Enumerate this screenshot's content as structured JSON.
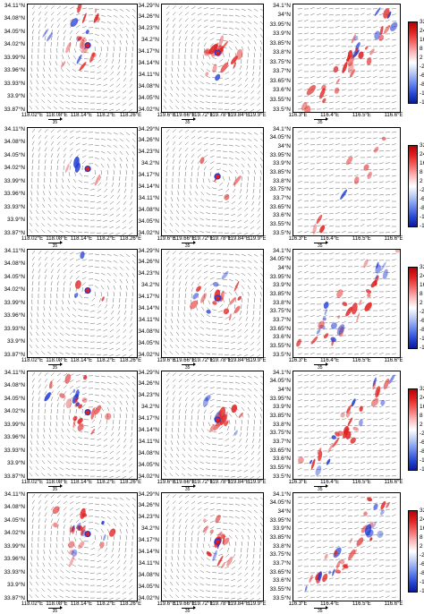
{
  "colors": {
    "positive": "#e02020",
    "negative": "#1f3bd6",
    "vector": "#444444",
    "frame": "#000000"
  },
  "colorbar_labels": [
    "32",
    "24",
    "16",
    "8",
    "2",
    "-2",
    "-6",
    "-8",
    "-10",
    "-12"
  ],
  "colorbar_rows": [
    [
      "32",
      "24",
      "16",
      "8",
      "2",
      "-2",
      "-6",
      "-8",
      "-10",
      "-12"
    ],
    [
      "32",
      "24",
      "16",
      "8",
      "2",
      "-2",
      "-6",
      "-8",
      "-10",
      "-12"
    ],
    [
      "32",
      "24",
      "16",
      "8",
      "2",
      "-2",
      "-6",
      "-8",
      "-10",
      "-12"
    ],
    [
      "32",
      "24",
      "16",
      "8",
      "2",
      "-2",
      "-6",
      "-8",
      "-10",
      "-12"
    ],
    [
      "32",
      "24",
      "16",
      "8",
      "2",
      "-2",
      "-6",
      "-8",
      "-10",
      "-12"
    ]
  ],
  "reference_vector_label": "35",
  "columns": [
    {
      "lat_labels": [
        "34.11°N",
        "34.08°N",
        "34.05°N",
        "34.02°N",
        "33.99°N",
        "33.96°N",
        "33.93°N",
        "33.9°N",
        "33.87°N"
      ],
      "lon_labels": [
        "118.02°E",
        "118.08°E",
        "118.14°E",
        "118.2°E",
        "118.26°E"
      ]
    },
    {
      "lat_labels": [
        "34.29°N",
        "34.26°N",
        "34.23°N",
        "34.2°N",
        "34.17°N",
        "34.14°N",
        "34.11°N",
        "34.08°N",
        "34.05°N",
        "34.02°N"
      ],
      "lon_labels": [
        "119.6°E",
        "119.66°E",
        "119.72°E",
        "119.78°E",
        "119.84°E",
        "119.9°E"
      ]
    },
    {
      "lat_labels": [
        "34.1°N",
        "34°N",
        "33.95°N",
        "33.9°N",
        "33.85°N",
        "33.8°N",
        "33.75°N",
        "33.7°N",
        "33.65°N",
        "33.6°N",
        "33.55°N",
        "33.5°N"
      ],
      "lon_labels": [
        "116.3°E",
        "116.4°E",
        "116.5°E",
        "116.6°E"
      ]
    }
  ],
  "rows": [
    {
      "row_id": "row-1",
      "col3_lat_labels": [
        "34.1°N",
        "34°N",
        "33.95°N",
        "33.9°N",
        "33.85°N",
        "33.8°N",
        "33.75°N",
        "33.7°N",
        "33.65°N",
        "33.6°N",
        "33.55°N",
        "33.5°N"
      ],
      "col3_lon_labels": [
        "116.3°E",
        "116.4°E",
        "116.5°E",
        "116.6°E"
      ]
    },
    {
      "row_id": "row-2",
      "col3_lat_labels": [
        "34.1°N",
        "34.05°N",
        "34°N",
        "33.95°N",
        "33.9°N",
        "33.85°N",
        "33.8°N",
        "33.75°N",
        "33.7°N",
        "33.65°N",
        "33.6°N",
        "33.55°N",
        "33.5°N"
      ],
      "col3_lon_labels": [
        "116.3°E",
        "116.4°E",
        "116.5°E",
        "116.6°E"
      ]
    },
    {
      "row_id": "row-3",
      "col3_lat_labels": [
        "34.1°N",
        "34.05°N",
        "34°N",
        "33.95°N",
        "33.9°N",
        "33.85°N",
        "33.8°N",
        "33.75°N",
        "33.7°N",
        "33.65°N",
        "33.6°N",
        "33.55°N",
        "33.5°N"
      ],
      "col3_lon_labels": [
        "116.3°E",
        "116.4°E",
        "116.5°E",
        "116.6°E"
      ]
    },
    {
      "row_id": "row-4",
      "col3_lat_labels": [
        "34.1°N",
        "34.05°N",
        "34°N",
        "33.95°N",
        "33.9°N",
        "33.85°N",
        "33.8°N",
        "33.75°N",
        "33.7°N",
        "33.65°N",
        "33.6°N",
        "33.55°N",
        "33.5°N"
      ],
      "col3_lon_labels": [
        "116.3°E",
        "116.4°E",
        "116.5°E",
        "116.6°E"
      ]
    },
    {
      "row_id": "row-5",
      "col3_lat_labels": [
        "34.1°N",
        "34.05°N",
        "34°N",
        "33.95°N",
        "33.9°N",
        "33.85°N",
        "33.8°N",
        "33.75°N",
        "33.7°N",
        "33.65°N",
        "33.6°N",
        "33.55°N",
        "33.5°N"
      ],
      "col3_lon_labels": [
        "116.3°E",
        "116.4°E",
        "116.5°E",
        "116.6°E"
      ]
    }
  ]
}
